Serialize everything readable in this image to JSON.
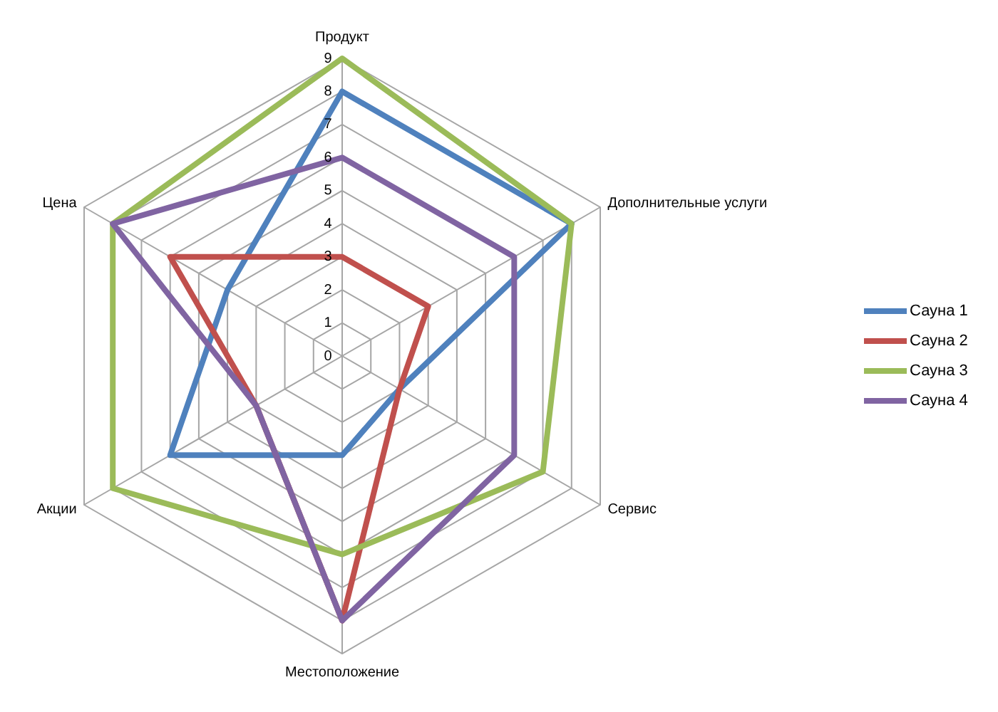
{
  "chart_data": {
    "type": "radar",
    "categories": [
      "Продукт",
      "Дополнительные услуги",
      "Сервис",
      "Местоположение",
      "Акции",
      "Цена"
    ],
    "series": [
      {
        "name": "Сауна 1",
        "color": "#4f81bd",
        "values": [
          8,
          8,
          2,
          3,
          6,
          4
        ]
      },
      {
        "name": "Сауна 2",
        "color": "#c0504d",
        "values": [
          3,
          3,
          2,
          8,
          3,
          6
        ]
      },
      {
        "name": "Сауна 3",
        "color": "#9bbb59",
        "values": [
          9,
          8,
          7,
          6,
          8,
          8
        ]
      },
      {
        "name": "Сауна 4",
        "color": "#8064a2",
        "values": [
          6,
          6,
          6,
          8,
          3,
          8
        ]
      }
    ],
    "ylim": [
      0,
      9
    ],
    "yticks": [
      0,
      1,
      2,
      3,
      4,
      5,
      6,
      7,
      8,
      9
    ],
    "grid": true,
    "legend": "right"
  }
}
